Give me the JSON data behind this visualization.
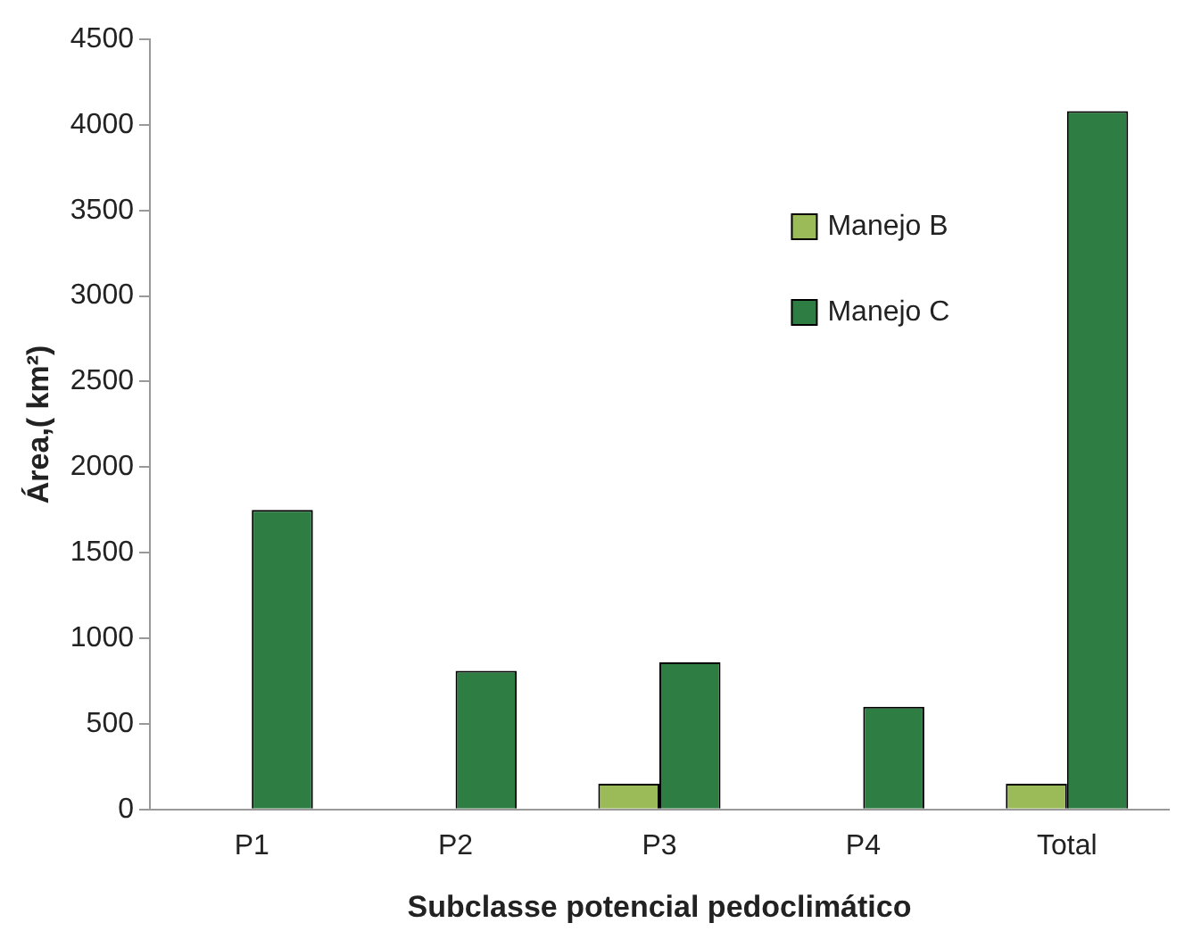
{
  "chart_data": {
    "type": "bar",
    "xlabel": "Subclasse potencial pedoclimático",
    "ylabel": "Área,( km²)",
    "categories": [
      "P1",
      "P2",
      "P3",
      "P4",
      "Total"
    ],
    "series": [
      {
        "name": "Manejo B",
        "color": "#9bbb59",
        "values": [
          0,
          0,
          150,
          0,
          150
        ]
      },
      {
        "name": "Manejo C",
        "color": "#2e7d43",
        "values": [
          1750,
          810,
          860,
          600,
          4080
        ]
      }
    ],
    "ylim": [
      0,
      4500
    ],
    "yticks": [
      0,
      500,
      1000,
      1500,
      2000,
      2500,
      3000,
      3500,
      4000,
      4500
    ],
    "grid": false,
    "legend": "top right"
  }
}
